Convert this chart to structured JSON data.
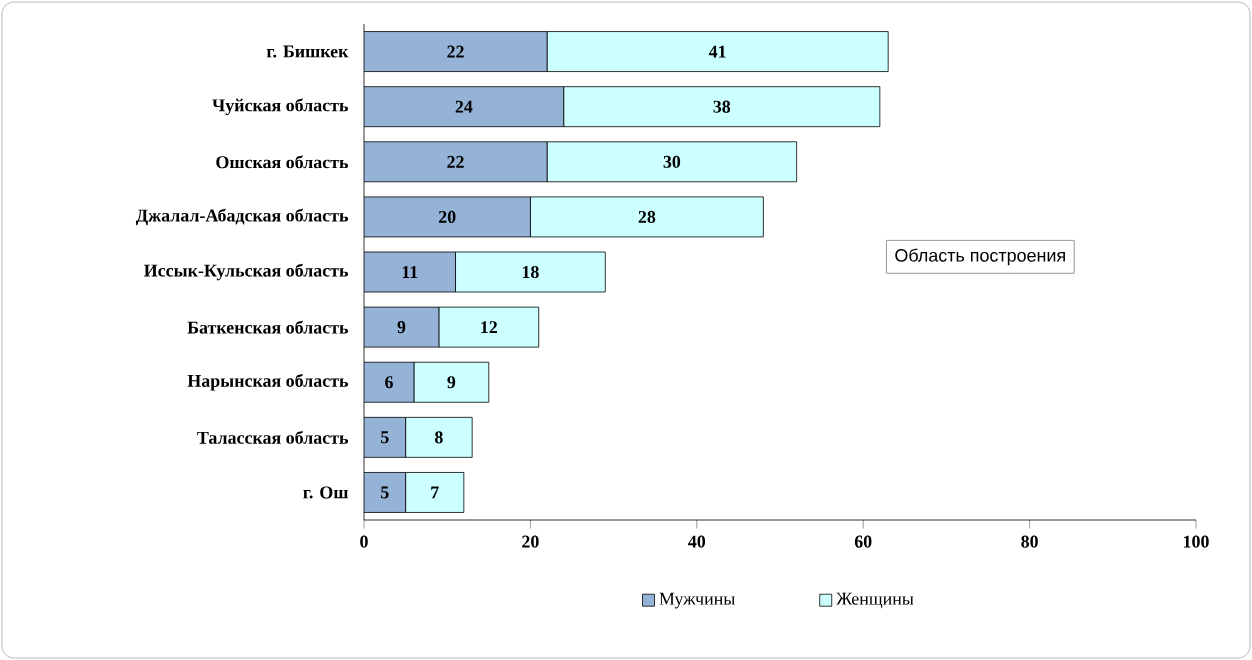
{
  "chart_data": {
    "type": "bar",
    "orientation": "horizontal",
    "stacked": true,
    "categories": [
      "г. Бишкек",
      "Чуйская область",
      "Ошская область",
      "Джалал-Абадская область",
      "Иссык-Кульская область",
      "Баткенская область",
      "Нарынская область",
      "Таласская область",
      "г. Ош"
    ],
    "series": [
      {
        "name": "Мужчины",
        "color": "#95b3d7",
        "values": [
          22,
          24,
          22,
          20,
          11,
          9,
          6,
          5,
          5
        ]
      },
      {
        "name": "Женщины",
        "color": "#ccffff",
        "values": [
          41,
          38,
          30,
          28,
          18,
          12,
          9,
          8,
          7
        ]
      }
    ],
    "xlim": [
      0,
      100
    ],
    "xticks": [
      0,
      20,
      40,
      60,
      80,
      100
    ],
    "data_labels": true,
    "legend": "bottom",
    "annotations": [
      "Область построения"
    ]
  }
}
